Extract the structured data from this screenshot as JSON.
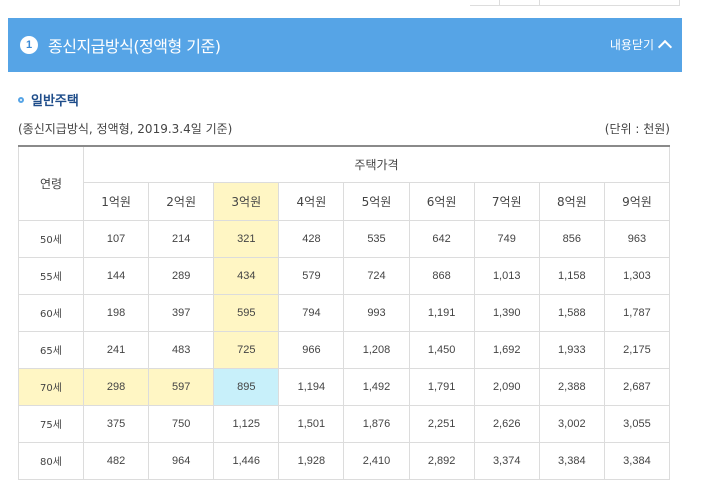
{
  "accordion": {
    "number": "1",
    "title": "종신지급방식(정액형 기준)",
    "close_label": "내용닫기"
  },
  "section": {
    "title": "일반주택",
    "caption": "(종신지급방식, 정액형, 2019.3.4일 기준)",
    "unit": "(단위 : 천원)"
  },
  "table": {
    "age_header": "연령",
    "group_header": "주택가격",
    "price_headers": [
      "1억원",
      "2억원",
      "3억원",
      "4억원",
      "5억원",
      "6억원",
      "7억원",
      "8억원",
      "9억원"
    ],
    "rows": [
      {
        "age": "50세",
        "values": [
          "107",
          "214",
          "321",
          "428",
          "535",
          "642",
          "749",
          "856",
          "963"
        ]
      },
      {
        "age": "55세",
        "values": [
          "144",
          "289",
          "434",
          "579",
          "724",
          "868",
          "1,013",
          "1,158",
          "1,303"
        ]
      },
      {
        "age": "60세",
        "values": [
          "198",
          "397",
          "595",
          "794",
          "993",
          "1,191",
          "1,390",
          "1,588",
          "1,787"
        ]
      },
      {
        "age": "65세",
        "values": [
          "241",
          "483",
          "725",
          "966",
          "1,208",
          "1,450",
          "1,692",
          "1,933",
          "2,175"
        ]
      },
      {
        "age": "70세",
        "values": [
          "298",
          "597",
          "895",
          "1,194",
          "1,492",
          "1,791",
          "2,090",
          "2,388",
          "2,687"
        ]
      },
      {
        "age": "75세",
        "values": [
          "375",
          "750",
          "1,125",
          "1,501",
          "1,876",
          "2,251",
          "2,626",
          "3,002",
          "3,055"
        ]
      },
      {
        "age": "80세",
        "values": [
          "482",
          "964",
          "1,446",
          "1,928",
          "2,410",
          "2,892",
          "3,374",
          "3,384",
          "3,384"
        ]
      }
    ],
    "highlight_column_index": 2,
    "highlight_row_index": 4,
    "colors": {
      "highlight": "#fff6c4",
      "intersection": "#c8f0fa",
      "header_bar": "#56a4e6"
    }
  }
}
